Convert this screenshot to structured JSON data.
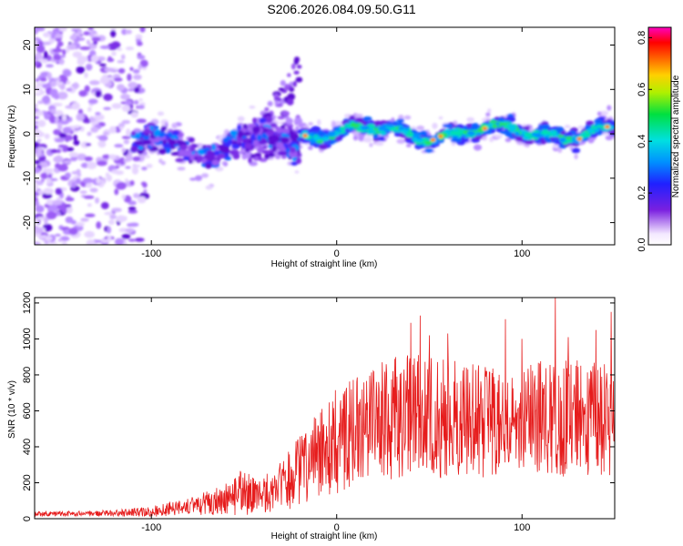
{
  "title": "S206.2026.084.09.50.G11",
  "colors": {
    "snr_line": "#e61c1c",
    "ridge_low": "#5b00d6",
    "ridge_high": "#00e8c0",
    "hot": "#ff2a2a"
  },
  "chart_data": [
    {
      "type": "heatmap",
      "name": "spectrogram",
      "xlabel": "Height of straight line (km)",
      "ylabel": "Frequency (Hz)",
      "xlim": [
        -163,
        150
      ],
      "ylim": [
        -25,
        24
      ],
      "xticks": [
        -100,
        0,
        100
      ],
      "xtick_labels": [
        "-100",
        "0",
        "100"
      ],
      "yticks": [
        -20,
        -10,
        0,
        10,
        20
      ],
      "ytick_labels": [
        "-20",
        "-10",
        "0",
        "10",
        "20"
      ],
      "colorbar": {
        "label": "Normalized spectral amplitude",
        "range": [
          0.0,
          0.84
        ],
        "ticks": [
          0.0,
          0.2,
          0.4,
          0.6,
          0.8
        ],
        "tick_labels": [
          "0.0",
          "0.2",
          "0.4",
          "0.6",
          "0.8"
        ],
        "colormap": "rainbow (purple-blue-cyan-green-yellow-red-magenta)"
      },
      "features": [
        {
          "description": "diffuse purple scatter",
          "x_range": [
            -163,
            -110
          ],
          "freq_range": [
            -25,
            24
          ]
        },
        {
          "description": "ridge segment",
          "x_range": [
            -110,
            -20
          ],
          "freq_center": -2,
          "freq_halfwidth": 6
        },
        {
          "description": "upward plume",
          "x_range": [
            -50,
            -20
          ],
          "freq_range": [
            -8,
            15
          ]
        },
        {
          "description": "bright continuous ridge",
          "x_range": [
            -20,
            150
          ],
          "freq_center": 0,
          "freq_halfwidth": 3
        }
      ]
    },
    {
      "type": "line",
      "name": "snr",
      "xlabel": "Height of straight line (km)",
      "ylabel": "SNR (10 * v/v)",
      "xlim": [
        -163,
        150
      ],
      "ylim": [
        0,
        1230
      ],
      "xticks": [
        -100,
        0,
        100
      ],
      "xtick_labels": [
        "-100",
        "0",
        "100"
      ],
      "yticks": [
        0,
        200,
        400,
        600,
        800,
        1000,
        1200
      ],
      "ytick_labels": [
        "0",
        "200",
        "400",
        "600",
        "800",
        "1000",
        "1200"
      ],
      "series": [
        {
          "name": "SNR",
          "envelope_x": [
            -163,
            -140,
            -120,
            -100,
            -80,
            -60,
            -50,
            -40,
            -30,
            -20,
            -10,
            0,
            10,
            20,
            30,
            40,
            50,
            60,
            70,
            80,
            90,
            100,
            110,
            120,
            130,
            140,
            150
          ],
          "envelope_mean": [
            25,
            28,
            30,
            40,
            70,
            110,
            140,
            130,
            180,
            260,
            360,
            430,
            490,
            540,
            560,
            580,
            560,
            560,
            550,
            540,
            530,
            540,
            560,
            560,
            560,
            560,
            560
          ],
          "envelope_amp": [
            15,
            15,
            18,
            30,
            50,
            90,
            130,
            100,
            140,
            200,
            250,
            300,
            320,
            330,
            340,
            350,
            340,
            330,
            320,
            310,
            300,
            300,
            320,
            330,
            320,
            320,
            330
          ],
          "peaks": [
            [
              -52,
              265
            ],
            [
              40,
              1090
            ],
            [
              45,
              1130
            ],
            [
              50,
              1020
            ],
            [
              60,
              1030
            ],
            [
              91,
              1110
            ],
            [
              100,
              1000
            ],
            [
              118,
              1230
            ],
            [
              125,
              1010
            ],
            [
              140,
              1050
            ],
            [
              148,
              1150
            ]
          ]
        }
      ]
    }
  ]
}
